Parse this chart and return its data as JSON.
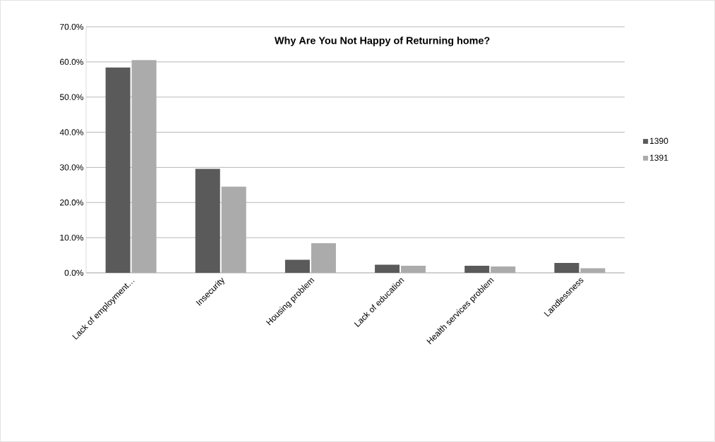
{
  "chart_data": {
    "type": "bar",
    "title": "Why Are You Not Happy of Returning home?",
    "categories": [
      "Lack of employment…",
      "Insecurity",
      "Housing problem",
      "Lack of education",
      "Health services problem",
      "Landlessness"
    ],
    "series": [
      {
        "name": "1390",
        "color": "#5a5a5a",
        "values": [
          58.4,
          29.6,
          3.7,
          2.3,
          2.0,
          2.8
        ]
      },
      {
        "name": "1391",
        "color": "#ababab",
        "values": [
          60.5,
          24.5,
          8.4,
          2.0,
          1.8,
          1.3
        ]
      }
    ],
    "ylim": [
      0,
      70
    ],
    "yticks": [
      {
        "value": 0,
        "label": "0.0%"
      },
      {
        "value": 10,
        "label": "10.0%"
      },
      {
        "value": 20,
        "label": "20.0%"
      },
      {
        "value": 30,
        "label": "30.0%"
      },
      {
        "value": 40,
        "label": "40.0%"
      },
      {
        "value": 50,
        "label": "50.0%"
      },
      {
        "value": 60,
        "label": "60.0%"
      },
      {
        "value": 70,
        "label": "70.0%"
      }
    ],
    "grid": "y",
    "legend": "right"
  }
}
